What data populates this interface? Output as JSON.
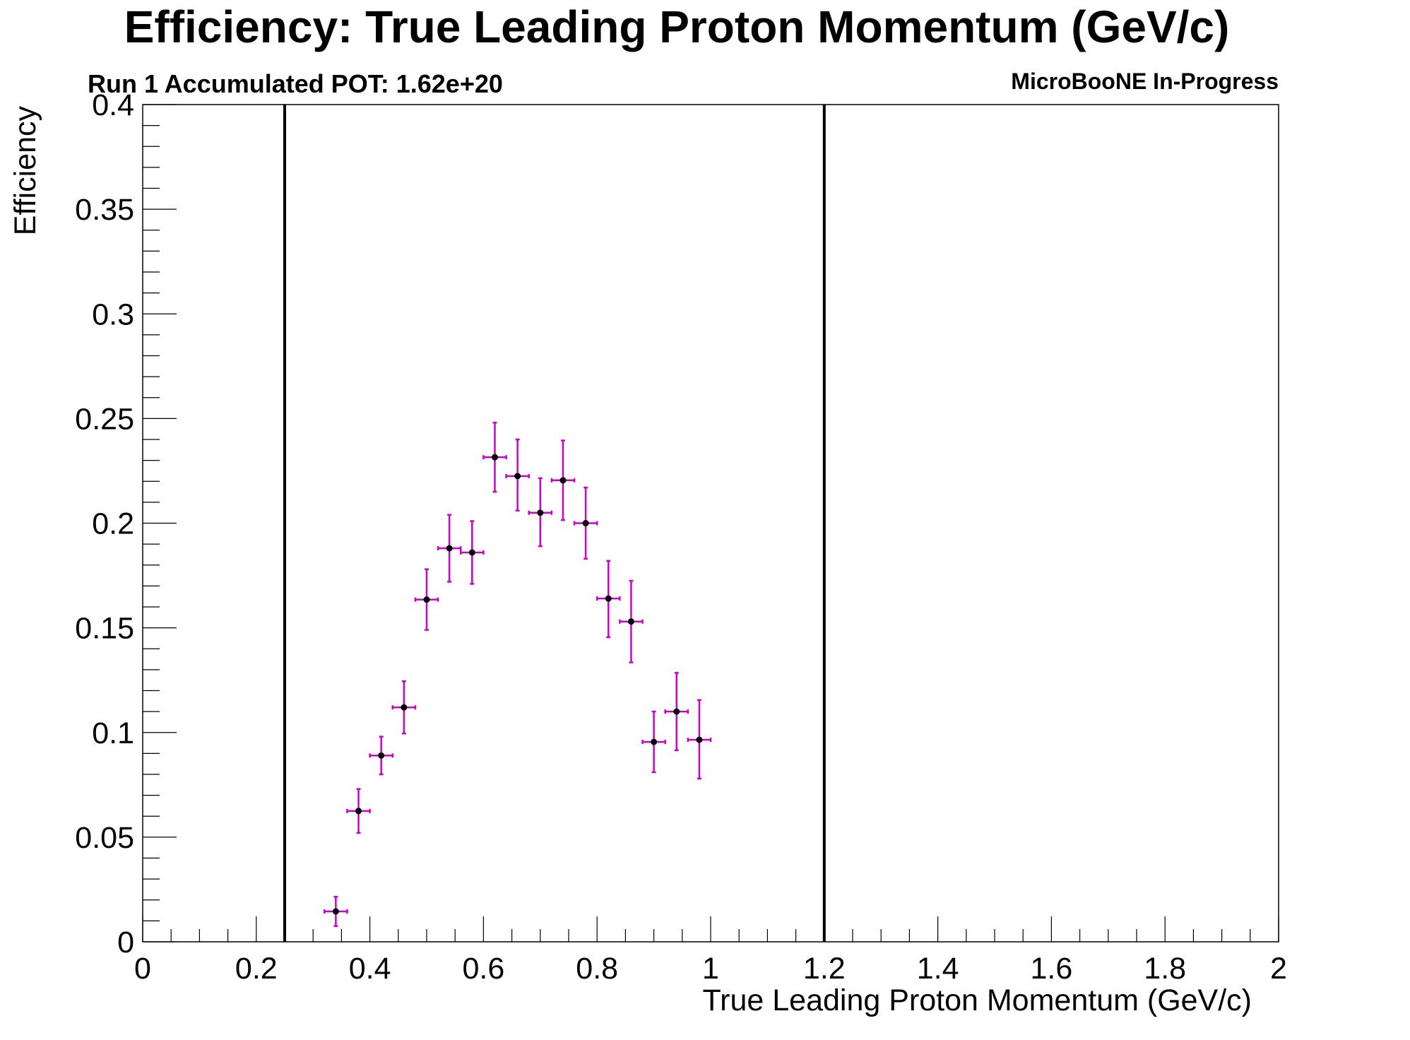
{
  "chart_data": {
    "type": "scatter",
    "title": "Efficiency: True Leading Proton Momentum (GeV/c)",
    "subtitle_left": "Run 1 Accumulated POT: 1.62e+20",
    "subtitle_right": "MicroBooNE In-Progress",
    "xlabel": "True Leading Proton Momentum (GeV/c)",
    "ylabel": "Efficiency",
    "xlim": [
      0,
      2
    ],
    "ylim": [
      0,
      0.4
    ],
    "x_tick_labels": [
      "0",
      "0.2",
      "0.4",
      "0.6",
      "0.8",
      "1",
      "1.2",
      "1.4",
      "1.6",
      "1.8",
      "2"
    ],
    "y_tick_labels": [
      "0",
      "0.05",
      "0.1",
      "0.15",
      "0.2",
      "0.25",
      "0.3",
      "0.35",
      "0.4"
    ],
    "cut_lines_x": [
      0.25,
      1.2
    ],
    "grid": false,
    "point_color": "#000000",
    "error_bar_color": "#cc00cc",
    "cut_line_color": "#000000",
    "series": [
      {
        "x": [
          0.34,
          0.38,
          0.42,
          0.46,
          0.5,
          0.54,
          0.58,
          0.62,
          0.66,
          0.7,
          0.74,
          0.78,
          0.82,
          0.86,
          0.9,
          0.94,
          0.98
        ],
        "x_err": [
          0.02,
          0.02,
          0.02,
          0.02,
          0.02,
          0.02,
          0.02,
          0.02,
          0.02,
          0.02,
          0.02,
          0.02,
          0.02,
          0.02,
          0.02,
          0.02,
          0.02
        ],
        "y": [
          0.0145,
          0.0625,
          0.089,
          0.112,
          0.1635,
          0.188,
          0.186,
          0.2315,
          0.2225,
          0.205,
          0.2205,
          0.2,
          0.164,
          0.153,
          0.0955,
          0.11,
          0.0965
        ],
        "y_err_low": [
          0.007,
          0.0105,
          0.009,
          0.0125,
          0.0145,
          0.016,
          0.015,
          0.0165,
          0.0165,
          0.016,
          0.019,
          0.017,
          0.0185,
          0.0195,
          0.0145,
          0.0185,
          0.0185
        ],
        "y_err_high": [
          0.007,
          0.0105,
          0.009,
          0.0125,
          0.0145,
          0.016,
          0.015,
          0.0165,
          0.0175,
          0.0165,
          0.019,
          0.017,
          0.018,
          0.0195,
          0.0145,
          0.0185,
          0.019
        ]
      }
    ]
  }
}
